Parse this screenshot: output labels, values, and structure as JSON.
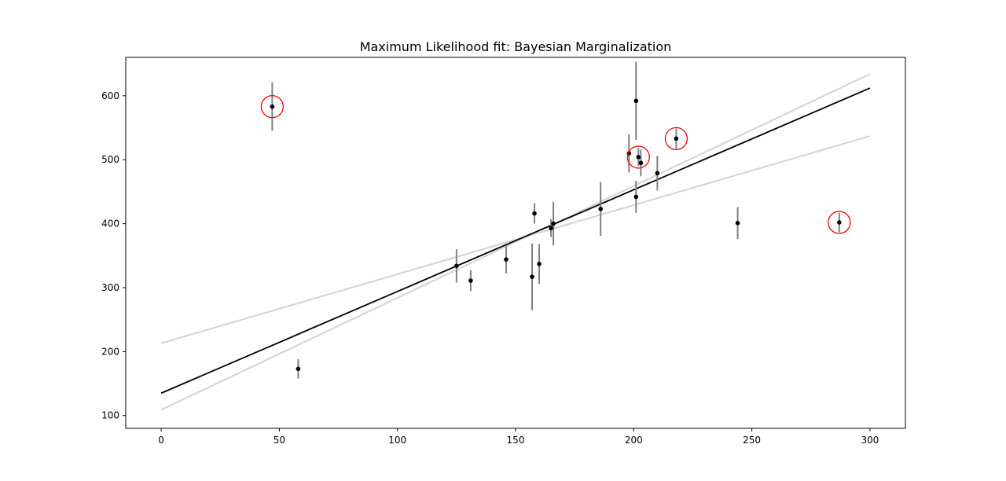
{
  "chart_data": {
    "type": "scatter",
    "title": "Maximum Likelihood fit: Bayesian Marginalization",
    "xlabel": "",
    "ylabel": "",
    "xlim": [
      -15,
      315
    ],
    "ylim": [
      80,
      660
    ],
    "x_ticks": [
      0,
      50,
      100,
      150,
      200,
      250,
      300
    ],
    "y_ticks": [
      100,
      200,
      300,
      400,
      500,
      600
    ],
    "grid": false,
    "colors": {
      "points": "#000000",
      "errorbars": "#808080",
      "fit_line": "#000000",
      "alt_lines": "#d3d3d3",
      "outlier_circles": "#ff0000"
    },
    "points": [
      {
        "x": 47,
        "y": 583,
        "err": 38
      },
      {
        "x": 58,
        "y": 173,
        "err": 15
      },
      {
        "x": 125,
        "y": 334,
        "err": 26
      },
      {
        "x": 131,
        "y": 311,
        "err": 16
      },
      {
        "x": 146,
        "y": 344,
        "err": 22
      },
      {
        "x": 157,
        "y": 317,
        "err": 52
      },
      {
        "x": 158,
        "y": 416,
        "err": 16
      },
      {
        "x": 160,
        "y": 337,
        "err": 31
      },
      {
        "x": 165,
        "y": 393,
        "err": 14
      },
      {
        "x": 166,
        "y": 400,
        "err": 34
      },
      {
        "x": 186,
        "y": 423,
        "err": 42
      },
      {
        "x": 198,
        "y": 510,
        "err": 30
      },
      {
        "x": 201,
        "y": 442,
        "err": 25
      },
      {
        "x": 201,
        "y": 592,
        "err": 61
      },
      {
        "x": 202,
        "y": 504,
        "err": 14
      },
      {
        "x": 203,
        "y": 495,
        "err": 21
      },
      {
        "x": 210,
        "y": 479,
        "err": 27
      },
      {
        "x": 218,
        "y": 533,
        "err": 16
      },
      {
        "x": 244,
        "y": 401,
        "err": 25
      },
      {
        "x": 287,
        "y": 402,
        "err": 15
      }
    ],
    "outliers": [
      {
        "x": 47,
        "y": 583
      },
      {
        "x": 202,
        "y": 504
      },
      {
        "x": 218,
        "y": 533
      },
      {
        "x": 287,
        "y": 402
      }
    ],
    "fit_line": {
      "x": [
        0,
        300
      ],
      "y": [
        135,
        612
      ]
    },
    "alt_lines": [
      {
        "x": [
          0,
          300
        ],
        "y": [
          213,
          537
        ]
      },
      {
        "x": [
          0,
          300
        ],
        "y": [
          109,
          634
        ]
      }
    ]
  }
}
